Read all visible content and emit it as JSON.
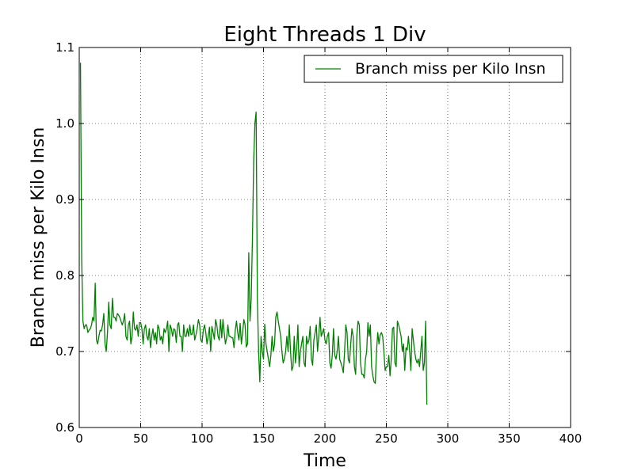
{
  "chart_data": {
    "type": "line",
    "title": "Eight Threads 1 Div",
    "xlabel": "Time",
    "ylabel": "Branch miss per Kilo Insn",
    "xlim": [
      0,
      400
    ],
    "ylim": [
      0.6,
      1.1
    ],
    "xticks": [
      "0",
      "50",
      "100",
      "150",
      "200",
      "250",
      "300",
      "350",
      "400"
    ],
    "yticks": [
      "0.6",
      "0.7",
      "0.8",
      "0.9",
      "1.0",
      "1.1"
    ],
    "grid": true,
    "legend_position": "top-right",
    "series": [
      {
        "name": "Branch miss per Kilo Insn",
        "color": "#008000",
        "x_start": 1,
        "values": [
          1.08,
          0.82,
          0.74,
          0.73,
          0.735,
          0.735,
          0.725,
          0.728,
          0.73,
          0.735,
          0.745,
          0.74,
          0.79,
          0.715,
          0.71,
          0.72,
          0.728,
          0.727,
          0.735,
          0.75,
          0.71,
          0.7,
          0.725,
          0.765,
          0.735,
          0.73,
          0.77,
          0.745,
          0.745,
          0.74,
          0.75,
          0.748,
          0.745,
          0.74,
          0.735,
          0.74,
          0.75,
          0.72,
          0.715,
          0.735,
          0.74,
          0.71,
          0.72,
          0.752,
          0.73,
          0.728,
          0.735,
          0.72,
          0.738,
          0.738,
          0.73,
          0.71,
          0.73,
          0.735,
          0.72,
          0.715,
          0.73,
          0.705,
          0.72,
          0.73,
          0.715,
          0.725,
          0.71,
          0.735,
          0.73,
          0.715,
          0.72,
          0.71,
          0.73,
          0.725,
          0.73,
          0.74,
          0.7,
          0.735,
          0.73,
          0.72,
          0.73,
          0.728,
          0.712,
          0.735,
          0.738,
          0.72,
          0.72,
          0.7,
          0.735,
          0.72,
          0.72,
          0.73,
          0.72,
          0.735,
          0.722,
          0.723,
          0.735,
          0.715,
          0.722,
          0.73,
          0.742,
          0.735,
          0.715,
          0.712,
          0.728,
          0.735,
          0.725,
          0.71,
          0.72,
          0.732,
          0.7,
          0.733,
          0.725,
          0.716,
          0.742,
          0.735,
          0.72,
          0.715,
          0.742,
          0.718,
          0.742,
          0.725,
          0.71,
          0.718,
          0.735,
          0.72,
          0.72,
          0.718,
          0.718,
          0.705,
          0.728,
          0.74,
          0.725,
          0.715,
          0.737,
          0.71,
          0.725,
          0.742,
          0.735,
          0.706,
          0.71,
          0.83,
          0.74,
          0.77,
          0.85,
          0.95,
          1.0,
          1.015,
          0.77,
          0.7,
          0.66,
          0.72,
          0.7,
          0.69,
          0.736,
          0.71,
          0.7,
          0.69,
          0.68,
          0.695,
          0.72,
          0.7,
          0.71,
          0.745,
          0.752,
          0.74,
          0.73,
          0.72,
          0.7,
          0.685,
          0.69,
          0.7,
          0.72,
          0.7,
          0.735,
          0.7,
          0.675,
          0.68,
          0.72,
          0.685,
          0.702,
          0.735,
          0.68,
          0.7,
          0.71,
          0.72,
          0.685,
          0.68,
          0.72,
          0.71,
          0.715,
          0.733,
          0.69,
          0.682,
          0.715,
          0.725,
          0.735,
          0.7,
          0.72,
          0.745,
          0.72,
          0.725,
          0.73,
          0.715,
          0.71,
          0.72,
          0.725,
          0.685,
          0.678,
          0.695,
          0.73,
          0.695,
          0.69,
          0.7,
          0.72,
          0.69,
          0.685,
          0.68,
          0.672,
          0.7,
          0.735,
          0.725,
          0.69,
          0.685,
          0.71,
          0.73,
          0.72,
          0.68,
          0.67,
          0.722,
          0.74,
          0.735,
          0.685,
          0.67,
          0.67,
          0.665,
          0.69,
          0.7,
          0.738,
          0.72,
          0.735,
          0.68,
          0.668,
          0.66,
          0.658,
          0.7,
          0.725,
          0.71,
          0.722,
          0.725,
          0.72,
          0.7,
          0.675,
          0.68,
          0.68,
          0.695,
          0.668,
          0.69,
          0.73,
          0.732,
          0.685,
          0.68,
          0.74,
          0.735,
          0.728,
          0.72,
          0.7,
          0.71,
          0.675,
          0.705,
          0.702,
          0.72,
          0.7,
          0.675,
          0.73,
          0.715,
          0.7,
          0.69,
          0.685,
          0.69,
          0.68,
          0.7,
          0.72,
          0.675,
          0.685,
          0.74,
          0.63
        ]
      }
    ]
  }
}
